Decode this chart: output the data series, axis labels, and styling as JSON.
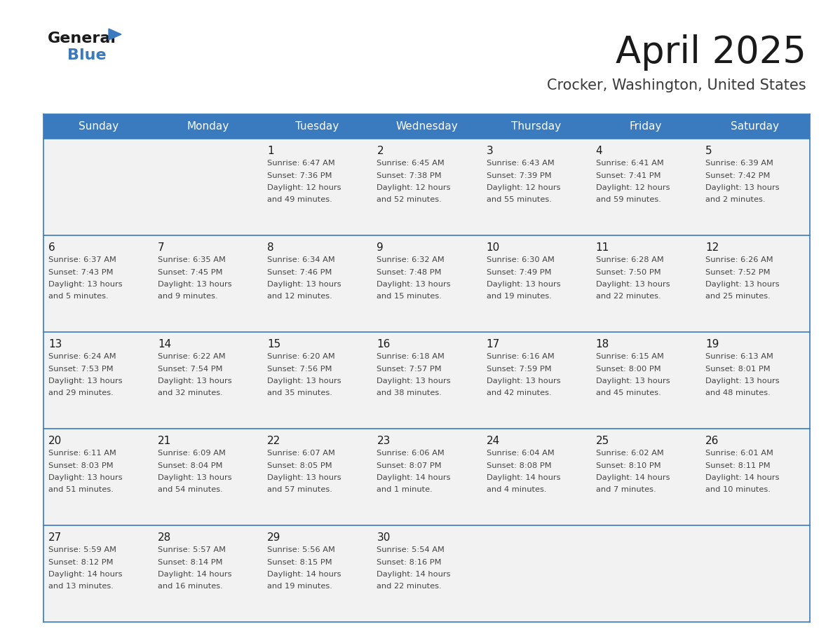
{
  "title": "April 2025",
  "subtitle": "Crocker, Washington, United States",
  "days_of_week": [
    "Sunday",
    "Monday",
    "Tuesday",
    "Wednesday",
    "Thursday",
    "Friday",
    "Saturday"
  ],
  "header_bg_color": "#3a7abf",
  "header_text_color": "#ffffff",
  "cell_bg_color": "#f2f2f2",
  "row_line_color": "#3a7abf",
  "title_color": "#1a1a1a",
  "subtitle_color": "#3a3a3a",
  "day_num_color": "#1a1a1a",
  "cell_text_color": "#444444",
  "logo_black": "#1a1a1a",
  "logo_blue": "#3a7abf",
  "calendar": [
    [
      {
        "day": 0,
        "sunrise": "",
        "sunset": "",
        "daylight": ""
      },
      {
        "day": 0,
        "sunrise": "",
        "sunset": "",
        "daylight": ""
      },
      {
        "day": 1,
        "sunrise": "6:47 AM",
        "sunset": "7:36 PM",
        "daylight": "12 hours\nand 49 minutes."
      },
      {
        "day": 2,
        "sunrise": "6:45 AM",
        "sunset": "7:38 PM",
        "daylight": "12 hours\nand 52 minutes."
      },
      {
        "day": 3,
        "sunrise": "6:43 AM",
        "sunset": "7:39 PM",
        "daylight": "12 hours\nand 55 minutes."
      },
      {
        "day": 4,
        "sunrise": "6:41 AM",
        "sunset": "7:41 PM",
        "daylight": "12 hours\nand 59 minutes."
      },
      {
        "day": 5,
        "sunrise": "6:39 AM",
        "sunset": "7:42 PM",
        "daylight": "13 hours\nand 2 minutes."
      }
    ],
    [
      {
        "day": 6,
        "sunrise": "6:37 AM",
        "sunset": "7:43 PM",
        "daylight": "13 hours\nand 5 minutes."
      },
      {
        "day": 7,
        "sunrise": "6:35 AM",
        "sunset": "7:45 PM",
        "daylight": "13 hours\nand 9 minutes."
      },
      {
        "day": 8,
        "sunrise": "6:34 AM",
        "sunset": "7:46 PM",
        "daylight": "13 hours\nand 12 minutes."
      },
      {
        "day": 9,
        "sunrise": "6:32 AM",
        "sunset": "7:48 PM",
        "daylight": "13 hours\nand 15 minutes."
      },
      {
        "day": 10,
        "sunrise": "6:30 AM",
        "sunset": "7:49 PM",
        "daylight": "13 hours\nand 19 minutes."
      },
      {
        "day": 11,
        "sunrise": "6:28 AM",
        "sunset": "7:50 PM",
        "daylight": "13 hours\nand 22 minutes."
      },
      {
        "day": 12,
        "sunrise": "6:26 AM",
        "sunset": "7:52 PM",
        "daylight": "13 hours\nand 25 minutes."
      }
    ],
    [
      {
        "day": 13,
        "sunrise": "6:24 AM",
        "sunset": "7:53 PM",
        "daylight": "13 hours\nand 29 minutes."
      },
      {
        "day": 14,
        "sunrise": "6:22 AM",
        "sunset": "7:54 PM",
        "daylight": "13 hours\nand 32 minutes."
      },
      {
        "day": 15,
        "sunrise": "6:20 AM",
        "sunset": "7:56 PM",
        "daylight": "13 hours\nand 35 minutes."
      },
      {
        "day": 16,
        "sunrise": "6:18 AM",
        "sunset": "7:57 PM",
        "daylight": "13 hours\nand 38 minutes."
      },
      {
        "day": 17,
        "sunrise": "6:16 AM",
        "sunset": "7:59 PM",
        "daylight": "13 hours\nand 42 minutes."
      },
      {
        "day": 18,
        "sunrise": "6:15 AM",
        "sunset": "8:00 PM",
        "daylight": "13 hours\nand 45 minutes."
      },
      {
        "day": 19,
        "sunrise": "6:13 AM",
        "sunset": "8:01 PM",
        "daylight": "13 hours\nand 48 minutes."
      }
    ],
    [
      {
        "day": 20,
        "sunrise": "6:11 AM",
        "sunset": "8:03 PM",
        "daylight": "13 hours\nand 51 minutes."
      },
      {
        "day": 21,
        "sunrise": "6:09 AM",
        "sunset": "8:04 PM",
        "daylight": "13 hours\nand 54 minutes."
      },
      {
        "day": 22,
        "sunrise": "6:07 AM",
        "sunset": "8:05 PM",
        "daylight": "13 hours\nand 57 minutes."
      },
      {
        "day": 23,
        "sunrise": "6:06 AM",
        "sunset": "8:07 PM",
        "daylight": "14 hours\nand 1 minute."
      },
      {
        "day": 24,
        "sunrise": "6:04 AM",
        "sunset": "8:08 PM",
        "daylight": "14 hours\nand 4 minutes."
      },
      {
        "day": 25,
        "sunrise": "6:02 AM",
        "sunset": "8:10 PM",
        "daylight": "14 hours\nand 7 minutes."
      },
      {
        "day": 26,
        "sunrise": "6:01 AM",
        "sunset": "8:11 PM",
        "daylight": "14 hours\nand 10 minutes."
      }
    ],
    [
      {
        "day": 27,
        "sunrise": "5:59 AM",
        "sunset": "8:12 PM",
        "daylight": "14 hours\nand 13 minutes."
      },
      {
        "day": 28,
        "sunrise": "5:57 AM",
        "sunset": "8:14 PM",
        "daylight": "14 hours\nand 16 minutes."
      },
      {
        "day": 29,
        "sunrise": "5:56 AM",
        "sunset": "8:15 PM",
        "daylight": "14 hours\nand 19 minutes."
      },
      {
        "day": 30,
        "sunrise": "5:54 AM",
        "sunset": "8:16 PM",
        "daylight": "14 hours\nand 22 minutes."
      },
      {
        "day": 0,
        "sunrise": "",
        "sunset": "",
        "daylight": ""
      },
      {
        "day": 0,
        "sunrise": "",
        "sunset": "",
        "daylight": ""
      },
      {
        "day": 0,
        "sunrise": "",
        "sunset": "",
        "daylight": ""
      }
    ]
  ]
}
